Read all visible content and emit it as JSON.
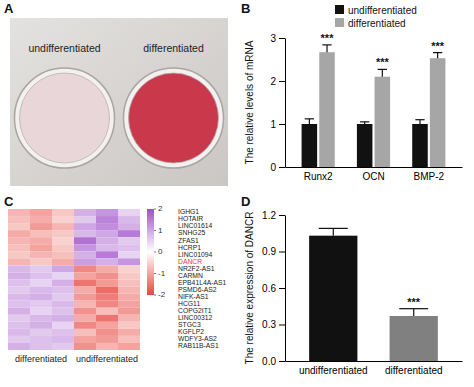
{
  "chart_data": [
    {
      "type": "image",
      "title": "A",
      "categories": [
        "undifferentiated",
        "differentiated"
      ],
      "colors": [
        "#e9d6d9",
        "#c9394b"
      ]
    },
    {
      "type": "bar",
      "title": "B",
      "categories": [
        "Runx2",
        "OCN",
        "BMP-2"
      ],
      "series": [
        {
          "name": "undifferentiated",
          "color": "#111111",
          "values": [
            1.0,
            1.0,
            1.0
          ],
          "errors": [
            0.12,
            0.05,
            0.1
          ]
        },
        {
          "name": "differentiated",
          "color": "#a6a6a6",
          "values": [
            2.67,
            2.1,
            2.53
          ],
          "errors": [
            0.17,
            0.17,
            0.13
          ]
        }
      ],
      "ylabel": "The relative levels of mRNA",
      "ylim": [
        0,
        3
      ],
      "yticks": [
        0,
        1,
        2,
        3
      ],
      "annotations": [
        "***",
        "***",
        "***"
      ],
      "legend": "top"
    },
    {
      "type": "heatmap",
      "title": "C",
      "rows": [
        "IGHG1",
        "HOTAIR",
        "LINC01614",
        "SNHG25",
        "ZFAS1",
        "HCRP1",
        "LINC01094",
        "DANCR",
        "NR2F2-AS1",
        "CARMN",
        "EPB41L4A-AS1",
        "PSMD6-AS2",
        "NIFK-AS1",
        "HCG11",
        "COPG2IT1",
        "LINC00312",
        "STGC3",
        "KGFLP2",
        "WDFY3-AS2",
        "RAB11B-AS1"
      ],
      "colors": [
        "#222222",
        "#222222",
        "#222222",
        "#222222",
        "#222222",
        "#222222",
        "#222222",
        "#e8393b",
        "#222222",
        "#222222",
        "#222222",
        "#222222",
        "#222222",
        "#222222",
        "#222222",
        "#222222",
        "#222222",
        "#222222",
        "#222222",
        "#222222"
      ],
      "column_groups": [
        "differentiated",
        "undifferentiated"
      ],
      "cells": [
        [
          -0.8,
          -1.0,
          -0.6,
          0.9,
          1.2,
          0.5
        ],
        [
          -0.7,
          -0.9,
          -0.5,
          0.6,
          1.4,
          0.8
        ],
        [
          -0.6,
          -1.1,
          -0.8,
          1.0,
          1.3,
          0.9
        ],
        [
          -0.9,
          -0.7,
          -0.6,
          0.8,
          1.0,
          1.5
        ],
        [
          -0.8,
          -0.9,
          -0.5,
          1.6,
          0.9,
          0.6
        ],
        [
          -0.7,
          -1.0,
          -0.6,
          1.2,
          0.8,
          0.7
        ],
        [
          -0.6,
          -0.8,
          -0.7,
          0.9,
          1.5,
          0.5
        ],
        [
          -0.8,
          -0.6,
          -0.9,
          1.1,
          0.9,
          1.2
        ],
        [
          0.8,
          0.6,
          1.0,
          -1.3,
          -0.9,
          -0.5
        ],
        [
          0.9,
          0.7,
          0.5,
          -1.0,
          -1.2,
          -0.6
        ],
        [
          0.7,
          0.5,
          0.9,
          -1.5,
          -1.1,
          -0.7
        ],
        [
          0.6,
          0.8,
          0.7,
          -0.9,
          -1.6,
          -0.8
        ],
        [
          0.8,
          0.9,
          0.6,
          -1.1,
          -1.4,
          -0.9
        ],
        [
          0.7,
          0.6,
          0.8,
          -0.8,
          -1.3,
          -1.0
        ],
        [
          0.9,
          0.5,
          0.7,
          -1.2,
          -0.7,
          -1.1
        ],
        [
          0.6,
          0.8,
          0.9,
          -0.9,
          -1.5,
          -0.8
        ],
        [
          0.7,
          0.9,
          0.5,
          -1.3,
          -1.0,
          -0.6
        ],
        [
          0.8,
          0.6,
          0.7,
          -0.7,
          -1.2,
          -0.9
        ],
        [
          0.6,
          0.7,
          0.8,
          -1.0,
          -1.1,
          -0.7
        ],
        [
          0.9,
          0.7,
          0.6,
          -1.2,
          -0.8,
          -1.0
        ]
      ],
      "colorbar": {
        "range": [
          -2,
          2
        ],
        "ticks": [
          -2,
          -1,
          0,
          1,
          2
        ],
        "colors": [
          "#e8473f",
          "#ffffff",
          "#9f4fc9"
        ]
      }
    },
    {
      "type": "bar",
      "title": "D",
      "categories": [
        "undifferentiated",
        "differentiated"
      ],
      "values": [
        1.03,
        0.37
      ],
      "errors": [
        0.06,
        0.06
      ],
      "colors": [
        "#111111",
        "#808080"
      ],
      "ylabel": "The relative expression of DANCR",
      "ylim": [
        0,
        1.2
      ],
      "yticks": [
        {
          "value": 0,
          "label": "0.0"
        },
        0.3,
        0.6,
        0.9,
        1.2
      ],
      "annotations": [
        null,
        "***"
      ]
    }
  ]
}
